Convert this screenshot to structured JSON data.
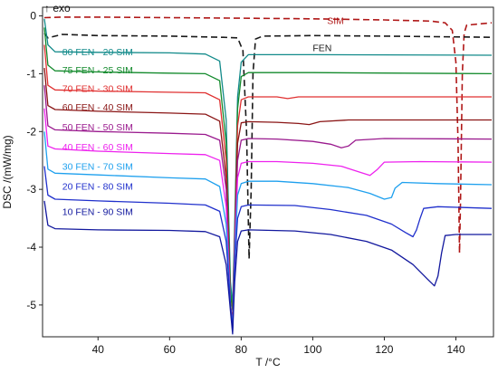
{
  "chart_data": {
    "type": "line",
    "title": "",
    "annotation": "↑ exo",
    "xlabel": "T /°C",
    "ylabel": "DSC /(mW/mg)",
    "xlim": [
      24.5,
      150.5
    ],
    "ylim": [
      -5.55,
      0.15
    ],
    "x_ticks": [
      40,
      60,
      80,
      100,
      120,
      140
    ],
    "y_ticks": [
      0,
      -1,
      -2,
      -3,
      -4,
      -5
    ],
    "x_tick_labels": [
      "40",
      "60",
      "80",
      "100",
      "120",
      "140"
    ],
    "y_tick_labels": [
      "0",
      "-1",
      "-2",
      "-3",
      "-4",
      "-5"
    ],
    "grid": false,
    "legend": "inline labels",
    "series": [
      {
        "name": "SIM",
        "color": "#b01818",
        "dash": "7,4",
        "label_x": 104,
        "label_y": -0.08,
        "points": [
          [
            25,
            -0.03
          ],
          [
            30,
            -0.02
          ],
          [
            40,
            -0.02
          ],
          [
            60,
            -0.03
          ],
          [
            80,
            -0.04
          ],
          [
            100,
            -0.05
          ],
          [
            120,
            -0.07
          ],
          [
            133,
            -0.09
          ],
          [
            137,
            -0.12
          ],
          [
            139,
            -0.25
          ],
          [
            140,
            -0.8
          ],
          [
            140.6,
            -2.2
          ],
          [
            141,
            -4.1
          ],
          [
            141.3,
            -3.2
          ],
          [
            141.8,
            -1.0
          ],
          [
            142.3,
            -0.3
          ],
          [
            143,
            -0.16
          ],
          [
            150,
            -0.12
          ]
        ]
      },
      {
        "name": "FEN",
        "color": "#1a1a1a",
        "dash": "7,4",
        "label_x": 100,
        "label_y": -0.55,
        "points": [
          [
            25,
            -0.3
          ],
          [
            26,
            -0.38
          ],
          [
            30,
            -0.32
          ],
          [
            40,
            -0.34
          ],
          [
            60,
            -0.35
          ],
          [
            75,
            -0.37
          ],
          [
            79,
            -0.38
          ],
          [
            80.5,
            -0.6
          ],
          [
            81.5,
            -2.0
          ],
          [
            82.2,
            -4.2
          ],
          [
            82.8,
            -3.0
          ],
          [
            83.3,
            -1.0
          ],
          [
            84,
            -0.4
          ],
          [
            86,
            -0.35
          ],
          [
            100,
            -0.34
          ],
          [
            120,
            -0.35
          ],
          [
            150,
            -0.37
          ]
        ]
      },
      {
        "name": "80 FEN - 20 SIM",
        "color": "#128a8a",
        "label_x": 30,
        "label_y": -0.62,
        "points": [
          [
            25,
            -0.05
          ],
          [
            26,
            -0.5
          ],
          [
            28,
            -0.62
          ],
          [
            40,
            -0.63
          ],
          [
            60,
            -0.64
          ],
          [
            70,
            -0.66
          ],
          [
            74,
            -0.78
          ],
          [
            75.8,
            -1.8
          ],
          [
            77,
            -4.6
          ],
          [
            77.6,
            -5.0
          ],
          [
            78.2,
            -3.6
          ],
          [
            79,
            -1.4
          ],
          [
            80,
            -0.8
          ],
          [
            82,
            -0.67
          ],
          [
            100,
            -0.67
          ],
          [
            150,
            -0.68
          ]
        ]
      },
      {
        "name": "75 FEN - 25 SIM",
        "color": "#138a2c",
        "label_x": 30,
        "label_y": -0.93,
        "points": [
          [
            25,
            -0.2
          ],
          [
            26,
            -0.85
          ],
          [
            28,
            -0.95
          ],
          [
            40,
            -0.97
          ],
          [
            60,
            -0.99
          ],
          [
            70,
            -1.0
          ],
          [
            74,
            -1.12
          ],
          [
            75.8,
            -2.2
          ],
          [
            77,
            -4.8
          ],
          [
            77.6,
            -5.1
          ],
          [
            78.2,
            -3.8
          ],
          [
            79,
            -1.6
          ],
          [
            80,
            -1.05
          ],
          [
            82,
            -0.98
          ],
          [
            100,
            -0.98
          ],
          [
            150,
            -1.0
          ]
        ]
      },
      {
        "name": "70 FEN - 30 SIM",
        "color": "#e03030",
        "label_x": 30,
        "label_y": -1.25,
        "points": [
          [
            25,
            -0.5
          ],
          [
            26,
            -1.2
          ],
          [
            28,
            -1.28
          ],
          [
            40,
            -1.3
          ],
          [
            60,
            -1.32
          ],
          [
            70,
            -1.33
          ],
          [
            74,
            -1.45
          ],
          [
            75.8,
            -2.5
          ],
          [
            77,
            -5.0
          ],
          [
            77.6,
            -5.25
          ],
          [
            78.2,
            -3.9
          ],
          [
            79,
            -1.9
          ],
          [
            80,
            -1.45
          ],
          [
            82,
            -1.4
          ],
          [
            90,
            -1.4
          ],
          [
            93,
            -1.43
          ],
          [
            96,
            -1.4
          ],
          [
            100,
            -1.4
          ],
          [
            150,
            -1.4
          ]
        ]
      },
      {
        "name": "60 FEN - 40 SIM",
        "color": "#8a1515",
        "label_x": 30,
        "label_y": -1.57,
        "points": [
          [
            25,
            -0.9
          ],
          [
            26,
            -1.55
          ],
          [
            28,
            -1.62
          ],
          [
            40,
            -1.65
          ],
          [
            60,
            -1.68
          ],
          [
            70,
            -1.7
          ],
          [
            74,
            -1.82
          ],
          [
            75.8,
            -2.8
          ],
          [
            77,
            -5.0
          ],
          [
            77.6,
            -5.3
          ],
          [
            78.2,
            -4.0
          ],
          [
            79,
            -2.2
          ],
          [
            80,
            -1.85
          ],
          [
            82,
            -1.83
          ],
          [
            90,
            -1.84
          ],
          [
            96,
            -1.86
          ],
          [
            99,
            -1.88
          ],
          [
            102,
            -1.83
          ],
          [
            110,
            -1.8
          ],
          [
            120,
            -1.8
          ],
          [
            150,
            -1.8
          ]
        ]
      },
      {
        "name": "50 FEN - 50 SIM",
        "color": "#9a1a8e",
        "label_x": 30,
        "label_y": -1.92,
        "points": [
          [
            25,
            -1.2
          ],
          [
            26,
            -1.9
          ],
          [
            28,
            -1.97
          ],
          [
            40,
            -2.0
          ],
          [
            60,
            -2.03
          ],
          [
            70,
            -2.05
          ],
          [
            74,
            -2.15
          ],
          [
            75.8,
            -3.0
          ],
          [
            77,
            -5.0
          ],
          [
            77.6,
            -5.35
          ],
          [
            78.2,
            -4.0
          ],
          [
            79,
            -2.5
          ],
          [
            80,
            -2.15
          ],
          [
            82,
            -2.12
          ],
          [
            90,
            -2.13
          ],
          [
            100,
            -2.17
          ],
          [
            105,
            -2.22
          ],
          [
            108,
            -2.28
          ],
          [
            110,
            -2.25
          ],
          [
            112,
            -2.15
          ],
          [
            120,
            -2.12
          ],
          [
            150,
            -2.13
          ]
        ]
      },
      {
        "name": "40 FEN - 60 SIM",
        "color": "#ee22ee",
        "label_x": 30,
        "label_y": -2.26,
        "points": [
          [
            25,
            -1.6
          ],
          [
            26,
            -2.25
          ],
          [
            28,
            -2.3
          ],
          [
            40,
            -2.34
          ],
          [
            60,
            -2.38
          ],
          [
            70,
            -2.4
          ],
          [
            74,
            -2.5
          ],
          [
            75.8,
            -3.3
          ],
          [
            77,
            -5.0
          ],
          [
            77.6,
            -5.4
          ],
          [
            78.2,
            -4.1
          ],
          [
            79,
            -2.8
          ],
          [
            80,
            -2.55
          ],
          [
            82,
            -2.52
          ],
          [
            90,
            -2.52
          ],
          [
            100,
            -2.55
          ],
          [
            108,
            -2.6
          ],
          [
            113,
            -2.7
          ],
          [
            116,
            -2.76
          ],
          [
            118,
            -2.66
          ],
          [
            120,
            -2.53
          ],
          [
            130,
            -2.52
          ],
          [
            150,
            -2.53
          ]
        ]
      },
      {
        "name": "30 FEN - 70 SIM",
        "color": "#1ea0ee",
        "label_x": 30,
        "label_y": -2.6,
        "points": [
          [
            25,
            -2.0
          ],
          [
            26,
            -2.65
          ],
          [
            28,
            -2.72
          ],
          [
            40,
            -2.75
          ],
          [
            60,
            -2.8
          ],
          [
            70,
            -2.82
          ],
          [
            74,
            -2.95
          ],
          [
            75.8,
            -3.6
          ],
          [
            77,
            -5.0
          ],
          [
            77.6,
            -5.4
          ],
          [
            78.2,
            -4.2
          ],
          [
            79,
            -3.1
          ],
          [
            80,
            -2.9
          ],
          [
            82,
            -2.86
          ],
          [
            90,
            -2.86
          ],
          [
            100,
            -2.9
          ],
          [
            110,
            -2.97
          ],
          [
            116,
            -3.07
          ],
          [
            120,
            -3.17
          ],
          [
            122,
            -3.14
          ],
          [
            123,
            -2.98
          ],
          [
            125,
            -2.88
          ],
          [
            135,
            -2.9
          ],
          [
            150,
            -2.92
          ]
        ]
      },
      {
        "name": "20 FEN - 80 SIM",
        "color": "#2030cc",
        "label_x": 30,
        "label_y": -2.94,
        "points": [
          [
            25,
            -2.6
          ],
          [
            26,
            -3.1
          ],
          [
            28,
            -3.17
          ],
          [
            40,
            -3.2
          ],
          [
            60,
            -3.24
          ],
          [
            70,
            -3.27
          ],
          [
            74,
            -3.38
          ],
          [
            75.8,
            -3.9
          ],
          [
            77,
            -5.0
          ],
          [
            77.6,
            -5.45
          ],
          [
            78.2,
            -4.3
          ],
          [
            79,
            -3.5
          ],
          [
            80,
            -3.3
          ],
          [
            82,
            -3.27
          ],
          [
            95,
            -3.28
          ],
          [
            105,
            -3.35
          ],
          [
            115,
            -3.45
          ],
          [
            122,
            -3.6
          ],
          [
            126,
            -3.75
          ],
          [
            128,
            -3.82
          ],
          [
            129,
            -3.7
          ],
          [
            130,
            -3.5
          ],
          [
            131,
            -3.33
          ],
          [
            135,
            -3.3
          ],
          [
            150,
            -3.33
          ]
        ]
      },
      {
        "name": "10 FEN - 90 SIM",
        "color": "#12189e",
        "label_x": 30,
        "label_y": -3.38,
        "points": [
          [
            25,
            -3.2
          ],
          [
            26,
            -3.62
          ],
          [
            28,
            -3.68
          ],
          [
            40,
            -3.7
          ],
          [
            60,
            -3.71
          ],
          [
            70,
            -3.73
          ],
          [
            74,
            -3.82
          ],
          [
            75.8,
            -4.3
          ],
          [
            77,
            -5.1
          ],
          [
            77.6,
            -5.5
          ],
          [
            78.2,
            -4.6
          ],
          [
            79,
            -3.9
          ],
          [
            80,
            -3.72
          ],
          [
            82,
            -3.7
          ],
          [
            95,
            -3.72
          ],
          [
            105,
            -3.78
          ],
          [
            115,
            -3.9
          ],
          [
            122,
            -4.05
          ],
          [
            128,
            -4.3
          ],
          [
            132,
            -4.55
          ],
          [
            134,
            -4.67
          ],
          [
            135,
            -4.5
          ],
          [
            136,
            -4.1
          ],
          [
            137,
            -3.8
          ],
          [
            140,
            -3.78
          ],
          [
            150,
            -3.78
          ]
        ]
      }
    ]
  }
}
